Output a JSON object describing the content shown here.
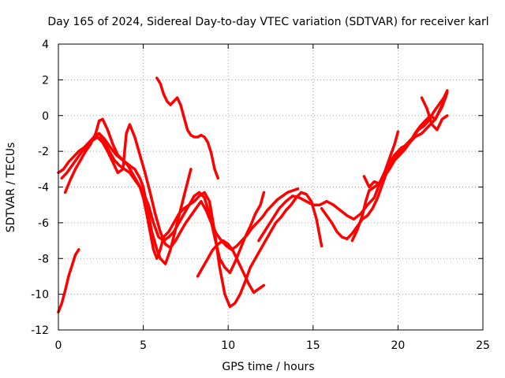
{
  "chart_data": {
    "type": "line",
    "title": "Day 165 of 2024, Sidereal Day-to-day VTEC variation (SDTVAR) for receiver karl",
    "xlabel": "GPS time / hours",
    "ylabel": "SDTVAR / TECUs",
    "xlim": [
      0,
      25
    ],
    "ylim": [
      -12,
      4
    ],
    "xticks": [
      0,
      5,
      10,
      15,
      20,
      25
    ],
    "yticks": [
      -12,
      -10,
      -8,
      -6,
      -4,
      -2,
      0,
      2,
      4
    ],
    "grid": true,
    "color": "#ff0000",
    "series": [
      {
        "x": [
          0.0,
          0.2,
          0.4,
          0.6,
          0.8,
          1.0,
          1.2
        ],
        "y": [
          -11.0,
          -10.5,
          -9.8,
          -9.0,
          -8.4,
          -7.8,
          -7.5
        ]
      },
      {
        "x": [
          0.0,
          0.3,
          0.6,
          0.9,
          1.2,
          1.5,
          1.8,
          2.1,
          2.4,
          2.7,
          3.0,
          3.4,
          3.8,
          4.2,
          4.5,
          4.8,
          5.0,
          5.2,
          5.5,
          5.8,
          6.0,
          6.3,
          6.6,
          7.0,
          7.4,
          7.8
        ],
        "y": [
          -3.2,
          -3.0,
          -2.6,
          -2.3,
          -2.0,
          -1.8,
          -1.5,
          -1.2,
          -1.0,
          -1.3,
          -1.7,
          -2.2,
          -2.5,
          -2.8,
          -3.0,
          -3.5,
          -4.0,
          -5.0,
          -6.5,
          -7.5,
          -8.0,
          -8.3,
          -7.5,
          -6.0,
          -4.5,
          -3.0
        ]
      },
      {
        "x": [
          0.4,
          0.7,
          1.0,
          1.3,
          1.6,
          1.9,
          2.2,
          2.4,
          2.6,
          2.9,
          3.2,
          3.5,
          3.8,
          4.1,
          4.4,
          4.7,
          5.0,
          5.3,
          5.6,
          5.9,
          6.2,
          6.5,
          6.8,
          7.1,
          7.4,
          7.7,
          8.0,
          8.3,
          8.6,
          8.9,
          9.2,
          9.5,
          9.8,
          10.1,
          10.4,
          10.7,
          11.0,
          11.3,
          11.6,
          11.9,
          12.1
        ],
        "y": [
          -4.3,
          -3.6,
          -3.0,
          -2.5,
          -2.0,
          -1.6,
          -1.0,
          -0.3,
          -0.2,
          -0.8,
          -1.6,
          -2.2,
          -2.5,
          -2.8,
          -3.3,
          -3.8,
          -4.3,
          -5.0,
          -6.0,
          -6.8,
          -7.0,
          -6.8,
          -6.5,
          -6.0,
          -5.5,
          -5.0,
          -4.5,
          -4.3,
          -4.6,
          -5.5,
          -6.8,
          -8.0,
          -8.5,
          -8.8,
          -8.2,
          -7.5,
          -6.8,
          -6.2,
          -5.5,
          -5.0,
          -4.3
        ]
      },
      {
        "x": [
          0.2,
          0.5,
          0.8,
          1.1,
          1.4,
          1.7,
          2.0,
          2.3,
          2.6,
          2.9,
          3.2,
          3.5,
          3.8,
          4.0,
          4.2,
          4.5,
          4.8,
          5.1,
          5.4,
          5.7,
          6.0,
          6.3,
          6.6,
          6.9,
          7.2,
          7.5,
          7.8,
          8.1,
          8.4,
          8.7,
          9.0,
          9.3,
          9.6,
          9.9,
          10.2,
          10.5,
          10.8,
          11.1,
          11.4,
          11.7,
          12.0,
          12.3,
          12.6,
          12.9,
          13.2,
          13.5,
          13.8,
          14.1
        ],
        "y": [
          -3.5,
          -3.2,
          -2.8,
          -2.4,
          -2.0,
          -1.7,
          -1.4,
          -1.2,
          -1.5,
          -2.0,
          -2.6,
          -3.2,
          -3.0,
          -1.0,
          -0.5,
          -1.2,
          -2.2,
          -3.2,
          -4.3,
          -5.5,
          -6.5,
          -7.2,
          -7.4,
          -7.0,
          -6.5,
          -6.0,
          -5.6,
          -5.2,
          -4.8,
          -5.3,
          -6.0,
          -6.6,
          -7.0,
          -7.3,
          -7.5,
          -7.3,
          -7.0,
          -6.7,
          -6.3,
          -6.0,
          -5.7,
          -5.3,
          -5.0,
          -4.7,
          -4.5,
          -4.3,
          -4.2,
          -4.1
        ]
      },
      {
        "x": [
          2.4,
          2.7,
          3.0,
          3.3,
          3.6,
          3.9,
          4.2,
          4.5,
          4.8,
          5.0,
          5.2,
          5.4,
          5.6,
          5.8,
          6.0,
          6.2,
          6.5,
          6.8,
          7.1,
          7.4,
          7.7,
          8.0,
          8.3,
          8.6,
          8.9,
          9.2,
          9.5,
          9.8,
          10.1,
          10.4,
          10.7,
          11.0,
          11.3,
          11.6,
          11.9,
          12.2,
          12.5,
          12.8,
          13.1,
          13.4,
          13.7,
          14.0,
          14.3,
          14.6,
          14.9,
          15.2,
          15.5
        ],
        "y": [
          -1.0,
          -1.5,
          -2.0,
          -2.5,
          -2.8,
          -3.0,
          -3.2,
          -3.6,
          -4.0,
          -4.6,
          -5.5,
          -6.5,
          -7.5,
          -8.0,
          -7.5,
          -6.8,
          -6.5,
          -6.0,
          -5.5,
          -5.2,
          -5.0,
          -4.8,
          -4.5,
          -4.3,
          -4.8,
          -6.5,
          -8.5,
          -10.0,
          -10.7,
          -10.5,
          -10.0,
          -9.3,
          -8.5,
          -8.0,
          -7.5,
          -7.0,
          -6.5,
          -6.0,
          -5.7,
          -5.3,
          -5.0,
          -4.6,
          -4.3,
          -4.4,
          -4.8,
          -5.8,
          -7.3
        ]
      },
      {
        "x": [
          5.8,
          6.0,
          6.2,
          6.4,
          6.6,
          6.8,
          7.0,
          7.2,
          7.4,
          7.6,
          7.8,
          8.0,
          8.2,
          8.4,
          8.6,
          8.8,
          9.0,
          9.2,
          9.4
        ],
        "y": [
          2.1,
          1.8,
          1.2,
          0.8,
          0.6,
          0.8,
          1.0,
          0.6,
          -0.1,
          -0.8,
          -1.1,
          -1.2,
          -1.2,
          -1.1,
          -1.2,
          -1.5,
          -2.1,
          -3.0,
          -3.5
        ]
      },
      {
        "x": [
          8.2,
          8.5,
          8.8,
          9.1,
          9.4,
          9.7,
          10.0,
          10.3,
          10.6,
          10.9,
          11.2,
          11.5,
          11.8,
          12.1
        ],
        "y": [
          -9.0,
          -8.5,
          -8.0,
          -7.5,
          -7.2,
          -7.0,
          -7.2,
          -7.6,
          -8.2,
          -8.8,
          -9.4,
          -9.9,
          -9.7,
          -9.5
        ]
      },
      {
        "x": [
          11.8,
          12.2,
          12.6,
          13.0,
          13.4,
          13.8,
          14.2,
          14.6,
          15.0,
          15.4,
          15.8,
          16.2,
          16.6,
          17.0,
          17.4,
          17.8,
          18.2,
          18.6,
          19.0,
          19.4,
          19.8,
          20.2,
          20.6,
          21.0,
          21.4,
          21.8,
          22.2,
          22.6,
          22.9
        ],
        "y": [
          -7.0,
          -6.4,
          -5.8,
          -5.2,
          -4.8,
          -4.5,
          -4.6,
          -4.8,
          -5.0,
          -5.0,
          -4.8,
          -5.0,
          -5.3,
          -5.6,
          -5.8,
          -5.5,
          -5.0,
          -4.6,
          -3.6,
          -2.8,
          -2.2,
          -1.8,
          -1.6,
          -1.2,
          -1.0,
          -0.6,
          -0.2,
          0.5,
          1.3
        ]
      },
      {
        "x": [
          15.5,
          15.8,
          16.1,
          16.4,
          16.7,
          17.0,
          17.3,
          17.6,
          17.9,
          18.2,
          18.5,
          18.8,
          19.1,
          19.4,
          19.7,
          20.0,
          20.3,
          20.6,
          20.9,
          21.2,
          21.5,
          21.8,
          22.1,
          22.4,
          22.7,
          22.9
        ],
        "y": [
          -5.2,
          -5.6,
          -6.0,
          -6.5,
          -6.8,
          -6.9,
          -6.6,
          -6.2,
          -5.8,
          -5.6,
          -5.2,
          -4.6,
          -3.8,
          -3.0,
          -2.5,
          -2.2,
          -1.8,
          -1.5,
          -1.2,
          -0.8,
          -0.6,
          -0.3,
          0.2,
          0.6,
          1.0,
          1.4
        ]
      },
      {
        "x": [
          17.3,
          17.6,
          17.9,
          18.1,
          18.3,
          18.6,
          18.9,
          19.2,
          19.5,
          19.8,
          20.1,
          20.4,
          20.7,
          21.0,
          21.3,
          21.6,
          21.9,
          22.2,
          22.5,
          22.8
        ],
        "y": [
          -7.0,
          -6.4,
          -5.6,
          -4.8,
          -4.2,
          -4.0,
          -3.8,
          -3.4,
          -3.0,
          -2.5,
          -2.2,
          -1.9,
          -1.5,
          -1.0,
          -0.6,
          -0.3,
          0.0,
          -0.2,
          0.4,
          1.0
        ]
      },
      {
        "x": [
          18.0,
          18.3,
          18.6,
          18.9,
          19.2,
          19.5,
          19.8,
          20.0
        ],
        "y": [
          -3.4,
          -4.0,
          -3.7,
          -3.8,
          -3.2,
          -2.4,
          -1.6,
          -0.9
        ]
      },
      {
        "x": [
          21.4,
          21.7,
          22.0,
          22.3,
          22.6,
          22.9
        ],
        "y": [
          1.0,
          0.4,
          -0.5,
          -0.8,
          -0.2,
          0.0
        ]
      }
    ]
  }
}
